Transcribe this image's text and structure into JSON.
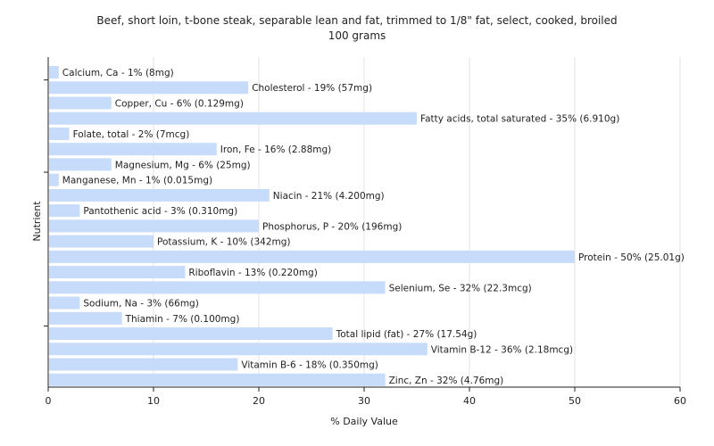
{
  "chart_data": {
    "type": "bar",
    "orientation": "horizontal",
    "title": "Beef, short loin, t-bone steak, separable lean and fat, trimmed to 1/8\" fat, select, cooked, broiled",
    "subtitle": "100 grams",
    "xlabel": "% Daily Value",
    "ylabel": "Nutrient",
    "xlim": [
      0,
      60
    ],
    "xticks": [
      0,
      10,
      20,
      30,
      40,
      50,
      60
    ],
    "grid": true,
    "bar_color": "#c6dcfa",
    "categories": [
      "Calcium, Ca",
      "Cholesterol",
      "Copper, Cu",
      "Fatty acids, total saturated",
      "Folate, total",
      "Iron, Fe",
      "Magnesium, Mg",
      "Manganese, Mn",
      "Niacin",
      "Pantothenic acid",
      "Phosphorus, P",
      "Potassium, K",
      "Protein",
      "Riboflavin",
      "Selenium, Se",
      "Sodium, Na",
      "Thiamin",
      "Total lipid (fat)",
      "Vitamin B-12",
      "Vitamin B-6",
      "Zinc, Zn"
    ],
    "values": [
      1,
      19,
      6,
      35,
      2,
      16,
      6,
      1,
      21,
      3,
      20,
      10,
      50,
      13,
      32,
      3,
      7,
      27,
      36,
      18,
      32
    ],
    "labels": [
      "Calcium, Ca - 1% (8mg)",
      "Cholesterol - 19% (57mg)",
      "Copper, Cu - 6% (0.129mg)",
      "Fatty acids, total saturated - 35% (6.910g)",
      "Folate, total - 2% (7mcg)",
      "Iron, Fe - 16% (2.88mg)",
      "Magnesium, Mg - 6% (25mg)",
      "Manganese, Mn - 1% (0.015mg)",
      "Niacin - 21% (4.200mg)",
      "Pantothenic acid - 3% (0.310mg)",
      "Phosphorus, P - 20% (196mg)",
      "Potassium, K - 10% (342mg)",
      "Protein - 50% (25.01g)",
      "Riboflavin - 13% (0.220mg)",
      "Selenium, Se - 32% (22.3mcg)",
      "Sodium, Na - 3% (66mg)",
      "Thiamin - 7% (0.100mg)",
      "Total lipid (fat) - 27% (17.54g)",
      "Vitamin B-12 - 36% (2.18mcg)",
      "Vitamin B-6 - 18% (0.350mg)",
      "Zinc, Zn - 32% (4.76mg)"
    ]
  }
}
